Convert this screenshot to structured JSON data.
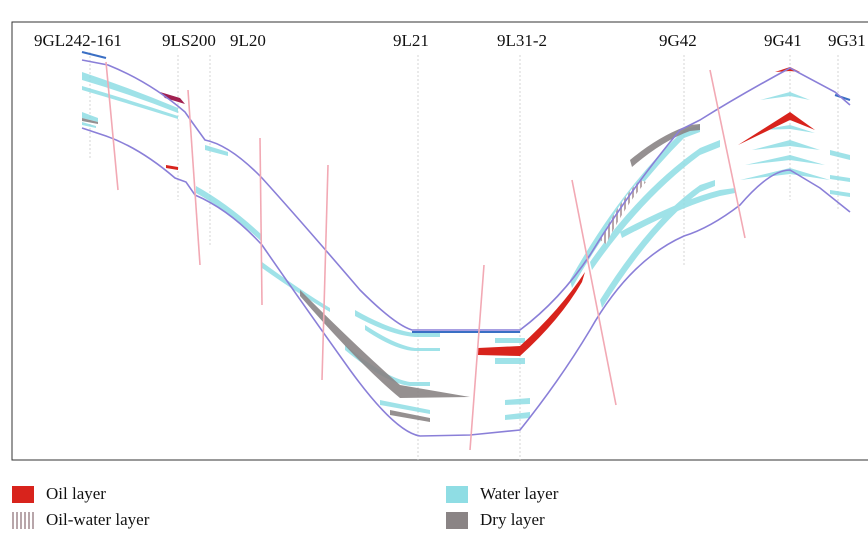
{
  "wells": [
    "9GL242-161",
    "9LS200",
    "9L20",
    "9L21",
    "9L31-2",
    "9G42",
    "9G41",
    "9G31"
  ],
  "legend": [
    {
      "label": "Oil layer",
      "color": "#d8231c",
      "pattern": "solid"
    },
    {
      "label": "Water layer",
      "color": "#8fdde4",
      "pattern": "solid"
    },
    {
      "label": "Oil-water layer",
      "color": "#b8a6aa",
      "pattern": "striped"
    },
    {
      "label": "Dry layer",
      "color": "#8a8485",
      "pattern": "solid"
    }
  ],
  "colors": {
    "boundary": "#8a7fd8",
    "fault": "#f2a9b4",
    "well_line": "#d0d0d0",
    "frame": "#333333",
    "top_marker": "#3a6fc4"
  }
}
